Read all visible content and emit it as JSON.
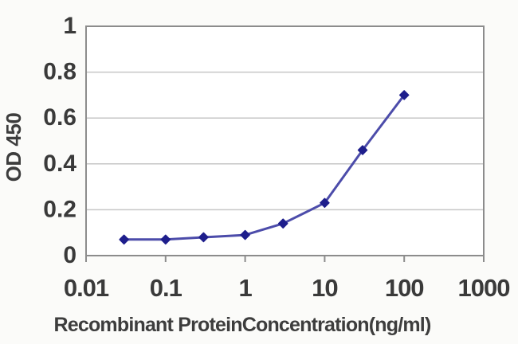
{
  "figure": {
    "background_color": "#fbfbf9",
    "plot_background_color": "#ffffff",
    "border_color": "#8c8c8c",
    "gridline_color": "#c6c6c6",
    "line_color": "#4c4caa",
    "marker_color": "#1e1e8c",
    "text_color": "#3a3a3a"
  },
  "chart_data": {
    "type": "line",
    "title": "",
    "xlabel": "Recombinant ProteinConcentration(ng/ml)",
    "ylabel": "OD 450",
    "x_scale": "log",
    "x": [
      0.03,
      0.1,
      0.3,
      1,
      3,
      10,
      30,
      100
    ],
    "series": [
      {
        "name": "OD 450",
        "marker": "diamond",
        "values": [
          0.07,
          0.07,
          0.08,
          0.09,
          0.14,
          0.23,
          0.46,
          0.7
        ]
      }
    ],
    "x_ticks": [
      "0.01",
      "0.1",
      "1",
      "10",
      "100",
      "1000"
    ],
    "x_tick_values": [
      0.01,
      0.1,
      1,
      10,
      100,
      1000
    ],
    "y_ticks": [
      "0",
      "0.2",
      "0.4",
      "0.6",
      "0.8",
      "1"
    ],
    "y_tick_values": [
      0,
      0.2,
      0.4,
      0.6,
      0.8,
      1
    ],
    "xlim": [
      0.01,
      1000
    ],
    "ylim": [
      0,
      1
    ],
    "grid": "horizontal",
    "legend": "none"
  }
}
